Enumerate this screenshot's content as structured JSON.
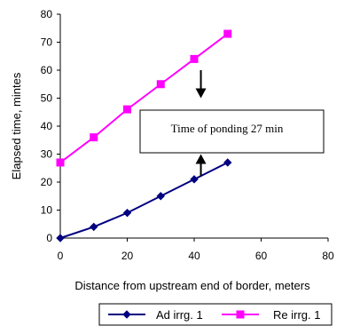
{
  "chart_data": {
    "type": "line",
    "xlabel": "Distance from upstream end of border, meters",
    "ylabel": "Elapsed time, mintes",
    "xlim": [
      0,
      80
    ],
    "ylim": [
      0,
      80
    ],
    "x_ticks": [
      "0",
      "20",
      "40",
      "60",
      "80"
    ],
    "y_ticks": [
      "0",
      "10",
      "20",
      "30",
      "40",
      "50",
      "60",
      "70",
      "80"
    ],
    "grid": false,
    "legend_position": "bottom",
    "series": [
      {
        "name": "Ad irrg. 1",
        "color": "#000080",
        "marker": "diamond",
        "x": [
          0,
          10,
          20,
          30,
          40,
          50
        ],
        "y": [
          0,
          4,
          9,
          15,
          21,
          27
        ]
      },
      {
        "name": "Re irrg. 1",
        "color": "#ff00ff",
        "marker": "square",
        "x": [
          0,
          10,
          20,
          30,
          40,
          50
        ],
        "y": [
          27,
          36,
          46,
          55,
          64,
          73
        ]
      }
    ],
    "annotation": {
      "text": "Time of ponding 27 min",
      "arrow_x": 42,
      "arrow_down_from": 60,
      "arrow_down_to": 50,
      "arrow_up_from": 22,
      "arrow_up_to": 30
    }
  }
}
